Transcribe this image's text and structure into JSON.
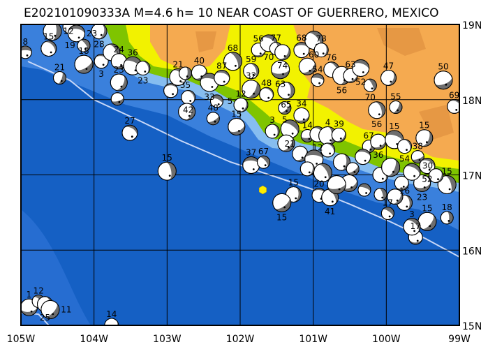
{
  "title": "E202101090333A M=4.6 h= 10 NEAR COAST OF GUERRERO, MEXICO",
  "map": {
    "lon_range": [
      -105,
      -99
    ],
    "lat_range": [
      15,
      19
    ],
    "lon_labels": [
      "105W",
      "104W",
      "103W",
      "102W",
      "101W",
      "100W",
      "99W"
    ],
    "lat_labels": [
      "19N",
      "18N",
      "17N",
      "16N",
      "15N"
    ],
    "colors": {
      "deep_ocean": "#1560c4",
      "mid_ocean": "#3a80dc",
      "shelf": "#86bdf0",
      "lowland": "#7fc400",
      "upland": "#f2f200",
      "highland": "#f5aa50",
      "trench": "#c8d8f8",
      "epicenter": "#ffee00",
      "compression": "#6e6e6e"
    },
    "epicenter": {
      "lon": -101.69,
      "lat": 16.8
    }
  },
  "events": [
    {
      "lon": -104.94,
      "lat": 18.63,
      "depth": "8"
    },
    {
      "lon": -104.62,
      "lat": 18.68,
      "depth": "15"
    },
    {
      "lon": -104.57,
      "lat": 18.91,
      "depth": "12"
    },
    {
      "lon": -104.33,
      "lat": 18.97,
      "depth": "19"
    },
    {
      "lon": -104.24,
      "lat": 18.88,
      "depth": "23"
    },
    {
      "lon": -104.14,
      "lat": 18.72,
      "depth": ""
    },
    {
      "lon": -103.93,
      "lat": 18.91,
      "depth": "28"
    },
    {
      "lon": -104.14,
      "lat": 18.47,
      "depth": "18"
    },
    {
      "lon": -103.9,
      "lat": 18.51,
      "depth": "3"
    },
    {
      "lon": -103.76,
      "lat": 18.63,
      "depth": ""
    },
    {
      "lon": -104.47,
      "lat": 18.29,
      "depth": "21"
    },
    {
      "lon": -103.66,
      "lat": 18.51,
      "depth": "24"
    },
    {
      "lon": -103.47,
      "lat": 18.45,
      "depth": "36"
    },
    {
      "lon": -103.33,
      "lat": 18.42,
      "depth": "23"
    },
    {
      "lon": -103.66,
      "lat": 18.23,
      "depth": "23"
    },
    {
      "lon": -103.68,
      "lat": 18.01,
      "depth": ""
    },
    {
      "lon": -103.51,
      "lat": 17.56,
      "depth": "27"
    },
    {
      "lon": -103.0,
      "lat": 17.05,
      "depth": "15"
    },
    {
      "lon": -103.76,
      "lat": 15.0,
      "depth": "14"
    },
    {
      "lon": -104.89,
      "lat": 15.24,
      "depth": "1"
    },
    {
      "lon": -104.76,
      "lat": 15.32,
      "depth": "12"
    },
    {
      "lon": -104.67,
      "lat": 15.28,
      "depth": "25"
    },
    {
      "lon": -104.6,
      "lat": 15.21,
      "depth": "11"
    },
    {
      "lon": -102.95,
      "lat": 18.12,
      "depth": ""
    },
    {
      "lon": -102.85,
      "lat": 18.3,
      "depth": "21"
    },
    {
      "lon": -102.75,
      "lat": 18.35,
      "depth": "35"
    },
    {
      "lon": -102.56,
      "lat": 18.36,
      "depth": "40"
    },
    {
      "lon": -102.42,
      "lat": 18.23,
      "depth": "33"
    },
    {
      "lon": -102.71,
      "lat": 18.03,
      "depth": "42"
    },
    {
      "lon": -102.73,
      "lat": 17.84,
      "depth": ""
    },
    {
      "lon": -102.37,
      "lat": 17.75,
      "depth": "48"
    },
    {
      "lon": -102.25,
      "lat": 18.29,
      "depth": "87"
    },
    {
      "lon": -102.1,
      "lat": 18.51,
      "depth": "68"
    },
    {
      "lon": -101.99,
      "lat": 17.93,
      "depth": "12"
    },
    {
      "lon": -102.05,
      "lat": 17.64,
      "depth": "15"
    },
    {
      "lon": -102.32,
      "lat": 17.98,
      "depth": "5"
    },
    {
      "lon": -101.85,
      "lat": 18.38,
      "depth": "59"
    },
    {
      "lon": -101.85,
      "lat": 18.14,
      "depth": "32"
    },
    {
      "lon": -101.75,
      "lat": 18.66,
      "depth": "56"
    },
    {
      "lon": -101.61,
      "lat": 18.75,
      "depth": "70"
    },
    {
      "lon": -101.51,
      "lat": 18.68,
      "depth": "77"
    },
    {
      "lon": -101.42,
      "lat": 18.63,
      "depth": "74"
    },
    {
      "lon": -101.45,
      "lat": 18.4,
      "depth": "63"
    },
    {
      "lon": -101.64,
      "lat": 18.07,
      "depth": "48"
    },
    {
      "lon": -101.37,
      "lat": 18.12,
      "depth": "65"
    },
    {
      "lon": -101.39,
      "lat": 17.89,
      "depth": "5"
    },
    {
      "lon": -101.16,
      "lat": 18.66,
      "depth": "68"
    },
    {
      "lon": -100.99,
      "lat": 18.79,
      "depth": "60"
    },
    {
      "lon": -100.89,
      "lat": 18.66,
      "depth": "78"
    },
    {
      "lon": -101.08,
      "lat": 18.44,
      "depth": ""
    },
    {
      "lon": -100.94,
      "lat": 18.26,
      "depth": "54"
    },
    {
      "lon": -100.75,
      "lat": 18.4,
      "depth": "76"
    },
    {
      "lon": -100.61,
      "lat": 18.32,
      "depth": "56"
    },
    {
      "lon": -100.49,
      "lat": 18.32,
      "depth": "63"
    },
    {
      "lon": -100.35,
      "lat": 18.42,
      "depth": "52"
    },
    {
      "lon": -100.22,
      "lat": 18.19,
      "depth": "70"
    },
    {
      "lon": -99.97,
      "lat": 18.29,
      "depth": "47"
    },
    {
      "lon": -99.22,
      "lat": 18.26,
      "depth": "50"
    },
    {
      "lon": -99.07,
      "lat": 17.91,
      "depth": "69"
    },
    {
      "lon": -100.13,
      "lat": 17.86,
      "depth": "56"
    },
    {
      "lon": -99.87,
      "lat": 17.9,
      "depth": "55"
    },
    {
      "lon": -101.16,
      "lat": 17.79,
      "depth": "34"
    },
    {
      "lon": -101.32,
      "lat": 17.61,
      "depth": "21"
    },
    {
      "lon": -101.56,
      "lat": 17.58,
      "depth": "3"
    },
    {
      "lon": -101.37,
      "lat": 17.42,
      "depth": ""
    },
    {
      "lon": -101.08,
      "lat": 17.52,
      "depth": "14"
    },
    {
      "lon": -100.94,
      "lat": 17.54,
      "depth": "12"
    },
    {
      "lon": -100.8,
      "lat": 17.52,
      "depth": "4"
    },
    {
      "lon": -100.65,
      "lat": 17.53,
      "depth": "39"
    },
    {
      "lon": -101.85,
      "lat": 17.13,
      "depth": "37"
    },
    {
      "lon": -101.68,
      "lat": 17.17,
      "depth": "67"
    },
    {
      "lon": -101.27,
      "lat": 16.74,
      "depth": "15"
    },
    {
      "lon": -101.43,
      "lat": 16.63,
      "depth": "15"
    },
    {
      "lon": -100.92,
      "lat": 16.73,
      "depth": "20"
    },
    {
      "lon": -100.77,
      "lat": 16.7,
      "depth": "41"
    },
    {
      "lon": -100.24,
      "lat": 17.38,
      "depth": "67"
    },
    {
      "lon": -100.11,
      "lat": 17.44,
      "depth": "36"
    },
    {
      "lon": -99.89,
      "lat": 17.47,
      "depth": "15"
    },
    {
      "lon": -99.75,
      "lat": 17.38,
      "depth": "54"
    },
    {
      "lon": -99.48,
      "lat": 17.49,
      "depth": "15"
    },
    {
      "lon": -99.57,
      "lat": 17.24,
      "depth": "38"
    },
    {
      "lon": -99.44,
      "lat": 17.12,
      "depth": "52"
    },
    {
      "lon": -99.17,
      "lat": 16.87,
      "depth": "15"
    },
    {
      "lon": -99.32,
      "lat": 16.99,
      "depth": "30"
    },
    {
      "lon": -99.51,
      "lat": 16.89,
      "depth": "23"
    },
    {
      "lon": -99.98,
      "lat": 16.49,
      "depth": "17"
    },
    {
      "lon": -99.75,
      "lat": 16.63,
      "depth": "16"
    },
    {
      "lon": -99.44,
      "lat": 16.38,
      "depth": "15"
    },
    {
      "lon": -99.6,
      "lat": 16.17,
      "depth": "17"
    },
    {
      "lon": -99.65,
      "lat": 16.31,
      "depth": "3"
    },
    {
      "lon": -99.17,
      "lat": 16.43,
      "depth": "18"
    },
    {
      "lon": -101.18,
      "lat": 17.28,
      "depth": ""
    },
    {
      "lon": -100.99,
      "lat": 17.21,
      "depth": ""
    },
    {
      "lon": -100.8,
      "lat": 17.33,
      "depth": ""
    },
    {
      "lon": -100.61,
      "lat": 17.17,
      "depth": ""
    },
    {
      "lon": -100.46,
      "lat": 17.08,
      "depth": ""
    },
    {
      "lon": -100.32,
      "lat": 17.24,
      "depth": ""
    },
    {
      "lon": -100.87,
      "lat": 17.03,
      "depth": ""
    },
    {
      "lon": -101.08,
      "lat": 17.08,
      "depth": ""
    },
    {
      "lon": -100.51,
      "lat": 16.89,
      "depth": ""
    },
    {
      "lon": -100.3,
      "lat": 16.8,
      "depth": ""
    },
    {
      "lon": -100.08,
      "lat": 17.0,
      "depth": ""
    },
    {
      "lon": -99.94,
      "lat": 17.1,
      "depth": ""
    },
    {
      "lon": -99.79,
      "lat": 16.89,
      "depth": ""
    },
    {
      "lon": -99.65,
      "lat": 17.04,
      "depth": ""
    },
    {
      "lon": -100.08,
      "lat": 16.74,
      "depth": ""
    },
    {
      "lon": -99.88,
      "lat": 16.71,
      "depth": ""
    },
    {
      "lon": -100.68,
      "lat": 16.87,
      "depth": ""
    }
  ]
}
